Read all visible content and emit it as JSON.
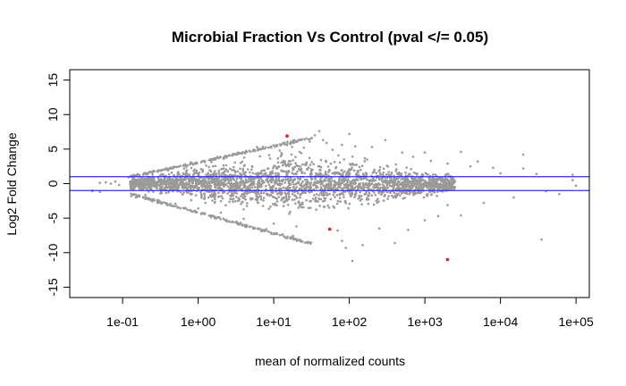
{
  "chart_data": {
    "type": "scatter",
    "title": "Microbial Fraction Vs Control (pval </= 0.05)",
    "xlabel": "mean of normalized counts",
    "ylabel": "Log2 Fold Change",
    "x_scale": "log10",
    "xlim": [
      0.02,
      150000
    ],
    "ylim": [
      -16.5,
      16.5
    ],
    "x_ticks": [
      0.1,
      1,
      10,
      100,
      1000,
      10000,
      100000
    ],
    "x_tick_labels": [
      "1e-01",
      "1e+00",
      "1e+01",
      "1e+02",
      "1e+03",
      "1e+04",
      "1e+05"
    ],
    "y_ticks": [
      -15,
      -10,
      -5,
      0,
      5,
      10,
      15
    ],
    "y_tick_labels": [
      "-15",
      "-10",
      "-5",
      "0",
      "5",
      "10",
      "15"
    ],
    "reference_lines": [
      1,
      -1
    ],
    "grid": false,
    "colors": {
      "points": "#9a9a9a",
      "significant": "#e41a1c",
      "reference_line": "#3333cc"
    },
    "series": [
      {
        "points": [
          [
            0.04,
            -1.1
          ],
          [
            0.04,
            -1.0
          ],
          [
            0.05,
            0.1
          ],
          [
            0.05,
            -1.2
          ],
          [
            0.06,
            0.2
          ],
          [
            0.07,
            0.0
          ],
          [
            0.08,
            0.3
          ],
          [
            0.09,
            -0.2
          ],
          [
            0.12,
            0.9
          ],
          [
            0.13,
            1.0
          ],
          [
            0.13,
            -1.8
          ],
          [
            0.14,
            0.1
          ],
          [
            0.15,
            -2.0
          ],
          [
            0.18,
            0.8
          ],
          [
            0.2,
            -1.6
          ],
          [
            0.25,
            1.3
          ],
          [
            0.3,
            -2.4
          ],
          [
            0.4,
            1.9
          ],
          [
            0.5,
            -2.9
          ],
          [
            0.7,
            2.4
          ],
          [
            1,
            -3.6
          ],
          [
            1.5,
            3.1
          ],
          [
            2,
            -4.2
          ],
          [
            3,
            4.3
          ],
          [
            4,
            -5.1
          ],
          [
            6,
            5.3
          ],
          [
            8,
            -6.6
          ],
          [
            10,
            -5.8
          ],
          [
            12,
            4.8
          ],
          [
            15,
            5.6
          ],
          [
            18,
            -7.6
          ],
          [
            20,
            -6.2
          ],
          [
            22,
            4.6
          ],
          [
            25,
            5.2
          ],
          [
            28,
            -8.6
          ],
          [
            30,
            6.1
          ],
          [
            32,
            6.6
          ],
          [
            35,
            7.0
          ],
          [
            40,
            7.6
          ],
          [
            45,
            6.3
          ],
          [
            50,
            5.9
          ],
          [
            60,
            4.9
          ],
          [
            70,
            -6.8
          ],
          [
            80,
            5.6
          ],
          [
            80,
            -8.3
          ],
          [
            90,
            -9.3
          ],
          [
            100,
            7.2
          ],
          [
            110,
            -11.2
          ],
          [
            120,
            5.4
          ],
          [
            150,
            -8.9
          ],
          [
            200,
            5.3
          ],
          [
            250,
            -6.5
          ],
          [
            300,
            6.3
          ],
          [
            400,
            -8.6
          ],
          [
            500,
            4.5
          ],
          [
            600,
            -6.7
          ],
          [
            700,
            3.9
          ],
          [
            1000,
            4.5
          ],
          [
            1000,
            -5.3
          ],
          [
            1200,
            3.3
          ],
          [
            1500,
            -4.7
          ],
          [
            2000,
            2.9
          ],
          [
            2000,
            -3.1
          ],
          [
            3000,
            4.6
          ],
          [
            3000,
            -4.6
          ],
          [
            4000,
            2.5
          ],
          [
            5000,
            3.2
          ],
          [
            6000,
            -2.8
          ],
          [
            8000,
            2.3
          ],
          [
            10000,
            1.5
          ],
          [
            15000,
            -2.0
          ],
          [
            20000,
            4.2
          ],
          [
            20000,
            2.2
          ],
          [
            30000,
            1.4
          ],
          [
            35000,
            -8.1
          ],
          [
            40000,
            -1.1
          ],
          [
            60000,
            -1.5
          ],
          [
            90000,
            1.3
          ],
          [
            90000,
            0.5
          ],
          [
            100000,
            -0.3
          ]
        ]
      },
      {
        "name": "significant",
        "points": [
          [
            15,
            6.9
          ],
          [
            55,
            -6.6
          ],
          [
            2000,
            -11.0
          ]
        ]
      }
    ]
  }
}
